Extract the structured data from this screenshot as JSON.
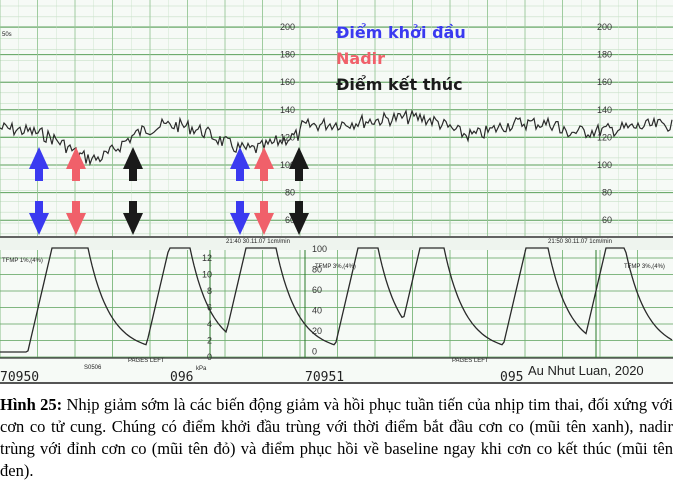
{
  "legend": {
    "start": "Điểm khởi đầu",
    "nadir": "Nadir",
    "end": "Điểm kết thúc",
    "start_color": "#3a3af0",
    "nadir_color": "#f0606a",
    "end_color": "#1a1a1a"
  },
  "fhr_scale": {
    "left": [
      "200",
      "180",
      "160",
      "140",
      "120",
      "100",
      "80",
      "60"
    ],
    "right": [
      "200",
      "180",
      "160",
      "140",
      "120",
      "100",
      "80",
      "60"
    ]
  },
  "uc_scale": [
    "12",
    "10",
    "8",
    "6",
    "4",
    "2",
    "0"
  ],
  "uc_scale_right": [
    "100",
    "80",
    "60",
    "40",
    "20",
    "0"
  ],
  "paper_labels": {
    "speed_a": "21:40  30.11.07  1cm/min",
    "speed_b": "21:50  30.11.07  1cm/min",
    "tfmp_a": "TFMP 1%,(4%)",
    "tfmp_b": "TFMP 3%,(4%)",
    "tfmp_c": "TFMP 3%,(4%)",
    "pages_left": "PAGES LEFT",
    "kpa": "kPa",
    "s0506": "S0506",
    "bpm": "50s"
  },
  "serials": [
    "70950",
    "096",
    "70951",
    "095"
  ],
  "credit": "Au Nhut Luan, 2020",
  "caption": {
    "lead": "Hình 25:",
    "text": " Nhịp giảm sớm là các biến động giảm và hồi phục tuần tiến của nhịp tim thai, đối xứng với cơn co tử cung. Chúng có điểm khởi đầu trùng với thời điểm bắt đầu cơn co (mũi tên xanh), nadir trùng với đỉnh cơn co (mũi tên đỏ) và điểm phục hồi về baseline ngay khi cơn co kết thúc (mũi tên đen)."
  }
}
